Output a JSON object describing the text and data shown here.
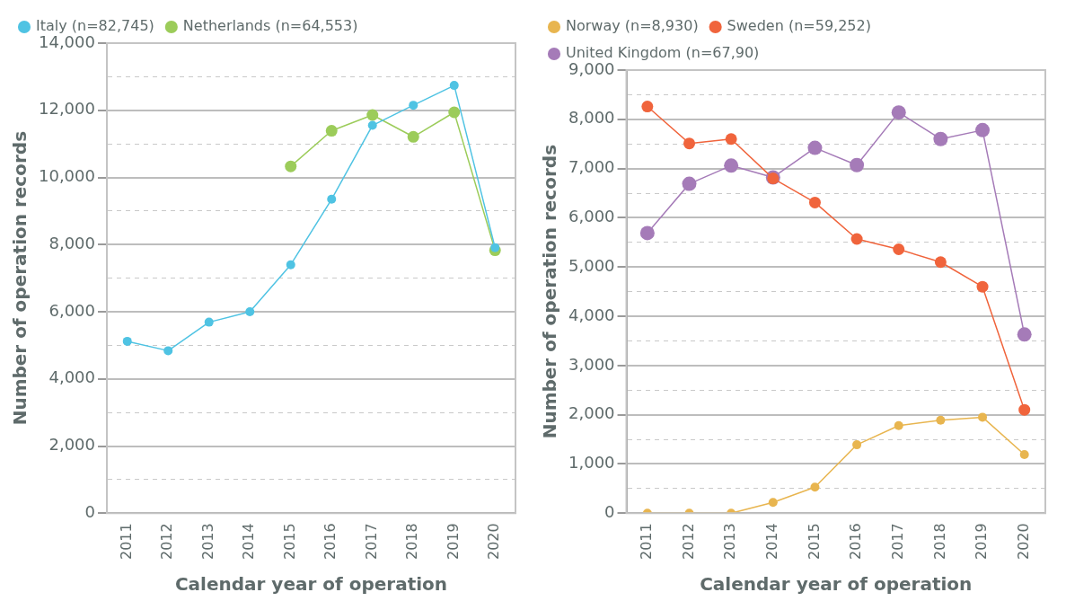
{
  "chart_data": [
    {
      "type": "line",
      "xlabel": "Calendar year of operation",
      "ylabel": "Number of operation records",
      "categories": [
        "2011",
        "2012",
        "2013",
        "2014",
        "2015",
        "2016",
        "2017",
        "2018",
        "2019",
        "2020"
      ],
      "series": [
        {
          "name": "Italy (n=82,745)",
          "color": "#4fc3e3",
          "values": [
            5120,
            4840,
            5690,
            6000,
            7400,
            9350,
            11550,
            12150,
            12740,
            7910
          ]
        },
        {
          "name": "Netherlands (n=64,553)",
          "color": "#9ccc5a",
          "values": [
            null,
            null,
            null,
            null,
            10330,
            11390,
            11860,
            11210,
            11940,
            7830
          ]
        }
      ],
      "ylim": [
        0,
        14000
      ],
      "yticks": [
        0,
        {
          "value": 1000,
          "label": null
        },
        {
          "value": 2000,
          "label": "2,000"
        },
        {
          "value": 3000,
          "label": null
        },
        {
          "value": 4000,
          "label": "4,000"
        },
        {
          "value": 5000,
          "label": null
        },
        {
          "value": 6000,
          "label": "6,000"
        },
        {
          "value": 7000,
          "label": null
        },
        {
          "value": 8000,
          "label": "8,000"
        },
        {
          "value": 9000,
          "label": null
        },
        {
          "value": 10000,
          "label": "10,000"
        },
        {
          "value": 11000,
          "label": null
        },
        {
          "value": 12000,
          "label": "12,000"
        },
        {
          "value": 13000,
          "label": null
        },
        {
          "value": 14000,
          "label": "14,000"
        }
      ],
      "grid": "y",
      "legend": "top left",
      "marker": "circle",
      "line_style": "solid"
    },
    {
      "type": "line",
      "xlabel": "Calendar year of operation",
      "ylabel": "Number of operation records",
      "categories": [
        "2011",
        "2012",
        "2013",
        "2014",
        "2015",
        "2016",
        "2017",
        "2018",
        "2019",
        "2020"
      ],
      "series": [
        {
          "name": "Norway (n=8,930)",
          "color": "#e8b54f",
          "values": [
            0,
            0,
            0,
            220,
            530,
            1390,
            1780,
            1890,
            1950,
            1190
          ]
        },
        {
          "name": "Sweden (n=59,252)",
          "color": "#f0643c",
          "values": [
            8260,
            7510,
            7600,
            6800,
            6310,
            5570,
            5360,
            5100,
            4600,
            2100
          ]
        },
        {
          "name": "United Kingdom (n=67,90)",
          "color": "#a57bb8",
          "values": [
            5690,
            6690,
            7060,
            6820,
            7420,
            7070,
            8140,
            7600,
            7780,
            3630
          ]
        }
      ],
      "ylim": [
        0,
        9000
      ],
      "yticks": [
        0,
        {
          "value": 500,
          "label": null
        },
        {
          "value": 1000,
          "label": "1,000"
        },
        {
          "value": 1500,
          "label": null
        },
        {
          "value": 2000,
          "label": "2,000"
        },
        {
          "value": 2500,
          "label": null
        },
        {
          "value": 3000,
          "label": "3,000"
        },
        {
          "value": 3500,
          "label": null
        },
        {
          "value": 4000,
          "label": "4,000"
        },
        {
          "value": 4500,
          "label": null
        },
        {
          "value": 5000,
          "label": "5,000"
        },
        {
          "value": 5500,
          "label": null
        },
        {
          "value": 6000,
          "label": "6,000"
        },
        {
          "value": 6500,
          "label": null
        },
        {
          "value": 7000,
          "label": "7,000"
        },
        {
          "value": 7500,
          "label": null
        },
        {
          "value": 8000,
          "label": "8,000"
        },
        {
          "value": 8500,
          "label": null
        },
        {
          "value": 9000,
          "label": "9,000"
        }
      ],
      "grid": "y",
      "legend": "top left",
      "marker": "circle",
      "line_style": "solid"
    }
  ]
}
